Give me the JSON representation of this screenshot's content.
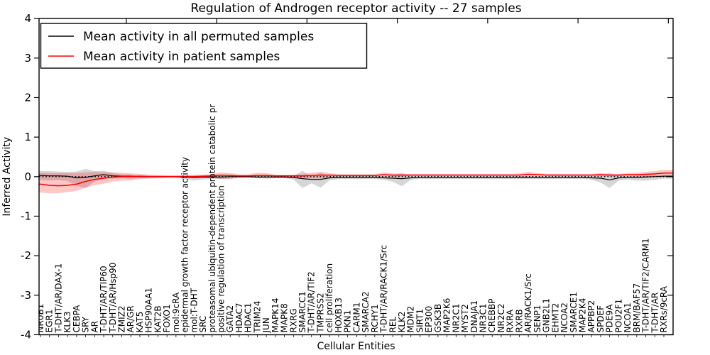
{
  "title": "Regulation of Androgen receptor activity -- 27 samples",
  "x_axis": {
    "label": "Cellular Entities"
  },
  "y_axis": {
    "label": "Inferred Activity",
    "tick_labels": [
      "4",
      "3",
      "2",
      "1",
      "0",
      "-1",
      "-2",
      "-3",
      "-4"
    ],
    "tick_values": [
      4,
      3,
      2,
      1,
      0,
      -1,
      -2,
      -3,
      -4
    ]
  },
  "legend": {
    "items": [
      {
        "label": "Mean activity in all permuted samples",
        "color": "#000000"
      },
      {
        "label": "Mean activity in patient samples",
        "color": "#ff0000"
      }
    ]
  },
  "chart_data": {
    "type": "line",
    "title": "Regulation of Androgen receptor activity -- 27 samples",
    "xlabel": "Cellular Entities",
    "ylabel": "Inferred Activity",
    "ylim": [
      -4,
      4
    ],
    "grid": false,
    "legend_position": "upper left",
    "zero_line": {
      "value": 0,
      "style": "dotted",
      "color": "#000000"
    },
    "categories": [
      "NR0B1",
      "EGR1",
      "T-DHT/AR/DAX-1",
      "KLK3",
      "CEBPA",
      "SRY",
      "AR",
      "T-DHT/AR/TIP60",
      "T-DHT/AR/Hsp90",
      "ZMIZ2",
      "AR/GR",
      "KAT5",
      "HSP90AA1",
      "KAT2B",
      "FOXO1",
      "mol:9cRA",
      "epidermal growth factor receptor activity",
      "mol:T-DHT",
      "SRC",
      "proteasomal ubiquitin-dependent protein catabolic pr",
      "positive regulation of transcription",
      "GATA2",
      "HDAC7",
      "HDAC1",
      "TRIM24",
      "JUN",
      "MAPK14",
      "MAPK8",
      "RXRG",
      "SMARCC1",
      "T-DHT/AR/TIF2",
      "TMPRSS2",
      "cell proliferation",
      "HOXB13",
      "PKN1",
      "CARM1",
      "SMARCA2",
      "RCHY1",
      "T-DHT/AR/RACK1/Src",
      "REL",
      "KLK2",
      "MDM2",
      "SIRT1",
      "EP300",
      "GSK3B",
      "MAP2K6",
      "NR2C1",
      "MYST2",
      "DNAJA1",
      "NR3C1",
      "CREBBP",
      "NR2C2",
      "RXRA",
      "RXRB",
      "AR/RACK1/Src",
      "SENP1",
      "GNB2L1",
      "EHMT2",
      "NCOA2",
      "SMARCE1",
      "MAP2K4",
      "APPBP2",
      "SPDEF",
      "PDE9A",
      "POU2F1",
      "NCOA1",
      "BRM/BAF57",
      "T-DHT/AR/TIF2/CARM1",
      "T-DHT/AR",
      "RXRs/9cRA"
    ],
    "series": [
      {
        "name": "Mean activity in all permuted samples",
        "color": "#000000",
        "band_color": "rgba(0,0,0,0.16)",
        "values": [
          0.03,
          0.02,
          0.02,
          0.01,
          -0.03,
          -0.02,
          0.02,
          0.05,
          0.02,
          0.01,
          0.01,
          0,
          0,
          0,
          0,
          0,
          -0.01,
          -0.02,
          -0.01,
          -0.01,
          -0.01,
          0,
          0,
          0,
          -0.01,
          -0.01,
          -0.01,
          -0.01,
          -0.02,
          -0.05,
          -0.07,
          -0.07,
          -0.03,
          -0.02,
          -0.02,
          -0.02,
          -0.02,
          -0.02,
          -0.03,
          -0.04,
          -0.05,
          -0.03,
          -0.02,
          -0.02,
          -0.02,
          -0.02,
          -0.02,
          -0.02,
          -0.02,
          -0.02,
          -0.02,
          -0.02,
          -0.02,
          -0.02,
          -0.02,
          -0.02,
          -0.02,
          -0.02,
          -0.02,
          -0.02,
          -0.02,
          -0.03,
          -0.04,
          -0.08,
          -0.03,
          -0.02,
          -0.02,
          -0.01,
          0,
          0.01
        ],
        "band_upper": [
          0.12,
          0.12,
          0.11,
          0.11,
          0.16,
          0.22,
          0.12,
          0.1,
          0.07,
          0.05,
          0.05,
          0.04,
          0.04,
          0.04,
          0.03,
          0.03,
          0.05,
          0.07,
          0.05,
          0.04,
          0.04,
          0.04,
          0.03,
          0.03,
          0.03,
          0.04,
          0.03,
          0.03,
          0.04,
          0.2,
          0.08,
          0.17,
          0.05,
          0.03,
          0.03,
          0.03,
          0.03,
          0.03,
          0.04,
          0.08,
          0.15,
          0.04,
          0.03,
          0.03,
          0.03,
          0.03,
          0.03,
          0.03,
          0.03,
          0.03,
          0.03,
          0.03,
          0.03,
          0.03,
          0.03,
          0.03,
          0.03,
          0.03,
          0.03,
          0.03,
          0.03,
          0.04,
          0.09,
          0.17,
          0.06,
          0.04,
          0.05,
          0.06,
          0.05,
          0.04
        ],
        "band_lower": [
          0.12,
          0.12,
          0.11,
          0.12,
          0.2,
          0.27,
          0.14,
          0.1,
          0.07,
          0.05,
          0.06,
          0.04,
          0.04,
          0.04,
          0.03,
          0.03,
          0.06,
          0.08,
          0.06,
          0.04,
          0.05,
          0.05,
          0.03,
          0.03,
          0.03,
          0.04,
          0.03,
          0.03,
          0.05,
          0.24,
          0.1,
          0.21,
          0.06,
          0.04,
          0.04,
          0.04,
          0.04,
          0.04,
          0.05,
          0.09,
          0.19,
          0.05,
          0.04,
          0.04,
          0.04,
          0.04,
          0.04,
          0.04,
          0.04,
          0.04,
          0.04,
          0.04,
          0.04,
          0.04,
          0.04,
          0.04,
          0.04,
          0.04,
          0.04,
          0.04,
          0.04,
          0.05,
          0.11,
          0.21,
          0.07,
          0.06,
          0.08,
          0.09,
          0.08,
          0.06
        ]
      },
      {
        "name": "Mean activity in patient samples",
        "color": "#ff0000",
        "band_color": "rgba(255,0,0,0.22)",
        "values": [
          -0.19,
          -0.22,
          -0.23,
          -0.22,
          -0.19,
          -0.12,
          -0.07,
          -0.04,
          -0.01,
          0,
          0,
          0.01,
          0,
          0,
          0,
          0,
          0,
          0,
          0.01,
          0.02,
          0.04,
          0.03,
          0.02,
          0.02,
          0.03,
          0.03,
          0.02,
          0.02,
          0.02,
          0.02,
          0.03,
          0.04,
          0.04,
          0.03,
          0.03,
          0.03,
          0.03,
          0.03,
          0.05,
          0.04,
          0.04,
          0.04,
          0.04,
          0.04,
          0.04,
          0.04,
          0.04,
          0.04,
          0.04,
          0.04,
          0.04,
          0.04,
          0.04,
          0.04,
          0.06,
          0.05,
          0.04,
          0.04,
          0.04,
          0.04,
          0.04,
          0.04,
          0.05,
          0.04,
          0.04,
          0.05,
          0.05,
          0.06,
          0.07,
          0.09
        ],
        "band_upper": [
          0.29,
          0.31,
          0.32,
          0.31,
          0.28,
          0.23,
          0.19,
          0.15,
          0.12,
          0.1,
          0.08,
          0.06,
          0.05,
          0.04,
          0.03,
          0.03,
          0.03,
          0.03,
          0.04,
          0.05,
          0.07,
          0.06,
          0.04,
          0.04,
          0.07,
          0.06,
          0.03,
          0.03,
          0.03,
          0.04,
          0.07,
          0.08,
          0.05,
          0.03,
          0.03,
          0.03,
          0.03,
          0.03,
          0.06,
          0.04,
          0.03,
          0.03,
          0.03,
          0.03,
          0.03,
          0.03,
          0.03,
          0.03,
          0.03,
          0.03,
          0.03,
          0.03,
          0.03,
          0.04,
          0.06,
          0.04,
          0.03,
          0.03,
          0.03,
          0.03,
          0.03,
          0.03,
          0.04,
          0.03,
          0.03,
          0.04,
          0.05,
          0.06,
          0.07,
          0.08
        ],
        "band_lower": [
          0.21,
          0.2,
          0.19,
          0.17,
          0.17,
          0.16,
          0.15,
          0.14,
          0.12,
          0.1,
          0.1,
          0.07,
          0.05,
          0.04,
          0.03,
          0.03,
          0.03,
          0.03,
          0.04,
          0.06,
          0.1,
          0.09,
          0.05,
          0.04,
          0.06,
          0.05,
          0.03,
          0.03,
          0.03,
          0.05,
          0.08,
          0.09,
          0.06,
          0.03,
          0.03,
          0.03,
          0.03,
          0.03,
          0.06,
          0.05,
          0.04,
          0.03,
          0.03,
          0.03,
          0.03,
          0.03,
          0.03,
          0.03,
          0.03,
          0.03,
          0.03,
          0.03,
          0.03,
          0.04,
          0.06,
          0.04,
          0.03,
          0.03,
          0.03,
          0.03,
          0.03,
          0.03,
          0.04,
          0.04,
          0.03,
          0.04,
          0.05,
          0.06,
          0.07,
          0.08
        ]
      }
    ]
  }
}
